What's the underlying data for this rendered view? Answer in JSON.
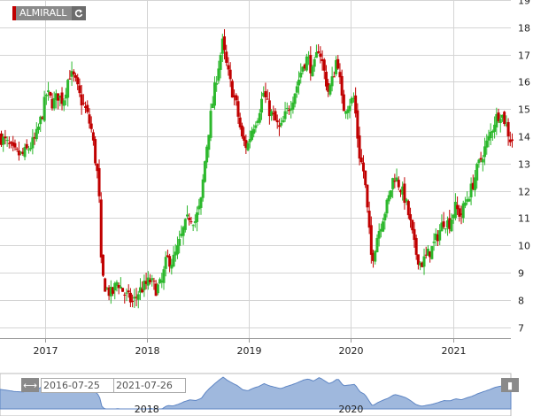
{
  "ticker": {
    "label": "ALMIRALL",
    "refresh_icon": "refresh-icon"
  },
  "range": {
    "from": "2016-07-25",
    "to": "2021-07-26",
    "handle_icon": "expand-arrows-icon"
  },
  "colors": {
    "up": "#2db82d",
    "down": "#c00000",
    "grid": "#d4d4d4",
    "nav_fill": "#9fb8dd",
    "nav_line": "#5f86c4"
  },
  "chart_data": {
    "type": "candlestick",
    "title": "",
    "xlabel": "",
    "ylabel": "",
    "ylim": [
      6.6,
      19
    ],
    "xlim": [
      "2016-07-25",
      "2021-07-26"
    ],
    "yticks": [
      7,
      8,
      9,
      10,
      11,
      12,
      13,
      14,
      15,
      16,
      17,
      18,
      19
    ],
    "xticks": [
      "2017",
      "2018",
      "2019",
      "2020",
      "2021"
    ],
    "grid": true,
    "navigator_xticks": [
      "2018",
      "2020"
    ],
    "price_path": [
      [
        "2016-07-25",
        14.0
      ],
      [
        "2016-08-15",
        13.8
      ],
      [
        "2016-09-15",
        13.4
      ],
      [
        "2016-10-15",
        13.3
      ],
      [
        "2016-11-10",
        13.6
      ],
      [
        "2016-12-01",
        13.9
      ],
      [
        "2016-12-25",
        14.8
      ],
      [
        "2017-01-10",
        15.6
      ],
      [
        "2017-02-01",
        15.2
      ],
      [
        "2017-02-20",
        15.5
      ],
      [
        "2017-03-10",
        15.3
      ],
      [
        "2017-04-01",
        16.3
      ],
      [
        "2017-04-20",
        16.1
      ],
      [
        "2017-05-10",
        15.4
      ],
      [
        "2017-06-01",
        14.9
      ],
      [
        "2017-06-20",
        14.2
      ],
      [
        "2017-07-05",
        13.0
      ],
      [
        "2017-07-15",
        12.3
      ],
      [
        "2017-07-25",
        9.0
      ],
      [
        "2017-08-10",
        8.4
      ],
      [
        "2017-09-01",
        8.2
      ],
      [
        "2017-09-20",
        8.7
      ],
      [
        "2017-10-05",
        8.4
      ],
      [
        "2017-10-25",
        8.1
      ],
      [
        "2017-11-15",
        7.9
      ],
      [
        "2017-12-05",
        8.3
      ],
      [
        "2017-12-25",
        8.5
      ],
      [
        "2018-01-15",
        8.7
      ],
      [
        "2018-02-05",
        8.4
      ],
      [
        "2018-02-25",
        8.6
      ],
      [
        "2018-03-15",
        9.5
      ],
      [
        "2018-04-05",
        9.4
      ],
      [
        "2018-04-25",
        9.9
      ],
      [
        "2018-05-15",
        10.6
      ],
      [
        "2018-06-05",
        11.1
      ],
      [
        "2018-06-25",
        10.9
      ],
      [
        "2018-07-15",
        11.5
      ],
      [
        "2018-08-01",
        13.3
      ],
      [
        "2018-08-15",
        14.4
      ],
      [
        "2018-09-01",
        15.6
      ],
      [
        "2018-09-15",
        16.5
      ],
      [
        "2018-10-01",
        17.4
      ],
      [
        "2018-10-15",
        16.6
      ],
      [
        "2018-11-01",
        15.8
      ],
      [
        "2018-11-20",
        15.1
      ],
      [
        "2018-12-10",
        13.9
      ],
      [
        "2018-12-28",
        13.6
      ],
      [
        "2019-01-15",
        14.3
      ],
      [
        "2019-02-05",
        14.8
      ],
      [
        "2019-02-25",
        15.6
      ],
      [
        "2019-03-15",
        15.0
      ],
      [
        "2019-04-05",
        14.6
      ],
      [
        "2019-04-25",
        14.2
      ],
      [
        "2019-05-15",
        14.8
      ],
      [
        "2019-06-05",
        15.3
      ],
      [
        "2019-06-25",
        15.9
      ],
      [
        "2019-07-15",
        16.6
      ],
      [
        "2019-08-01",
        16.9
      ],
      [
        "2019-08-20",
        16.3
      ],
      [
        "2019-09-10",
        17.3
      ],
      [
        "2019-09-25",
        16.6
      ],
      [
        "2019-10-15",
        15.6
      ],
      [
        "2019-10-30",
        16.1
      ],
      [
        "2019-11-15",
        17.0
      ],
      [
        "2019-12-05",
        15.0
      ],
      [
        "2019-12-25",
        15.2
      ],
      [
        "2020-01-15",
        15.4
      ],
      [
        "2020-02-01",
        13.4
      ],
      [
        "2020-02-20",
        12.6
      ],
      [
        "2020-03-05",
        10.9
      ],
      [
        "2020-03-18",
        9.4
      ],
      [
        "2020-04-05",
        10.3
      ],
      [
        "2020-04-25",
        11.0
      ],
      [
        "2020-05-15",
        11.6
      ],
      [
        "2020-06-05",
        12.6
      ],
      [
        "2020-06-25",
        12.2
      ],
      [
        "2020-07-15",
        11.7
      ],
      [
        "2020-08-01",
        10.9
      ],
      [
        "2020-08-20",
        9.8
      ],
      [
        "2020-09-10",
        9.3
      ],
      [
        "2020-09-30",
        9.6
      ],
      [
        "2020-10-20",
        9.9
      ],
      [
        "2020-11-10",
        10.4
      ],
      [
        "2020-11-30",
        10.9
      ],
      [
        "2020-12-20",
        10.8
      ],
      [
        "2021-01-10",
        11.4
      ],
      [
        "2021-01-30",
        11.1
      ],
      [
        "2021-02-20",
        11.7
      ],
      [
        "2021-03-10",
        12.1
      ],
      [
        "2021-03-30",
        12.8
      ],
      [
        "2021-04-20",
        13.4
      ],
      [
        "2021-05-10",
        13.9
      ],
      [
        "2021-06-01",
        14.6
      ],
      [
        "2021-06-20",
        14.9
      ],
      [
        "2021-07-05",
        14.6
      ],
      [
        "2021-07-26",
        13.9
      ]
    ]
  }
}
